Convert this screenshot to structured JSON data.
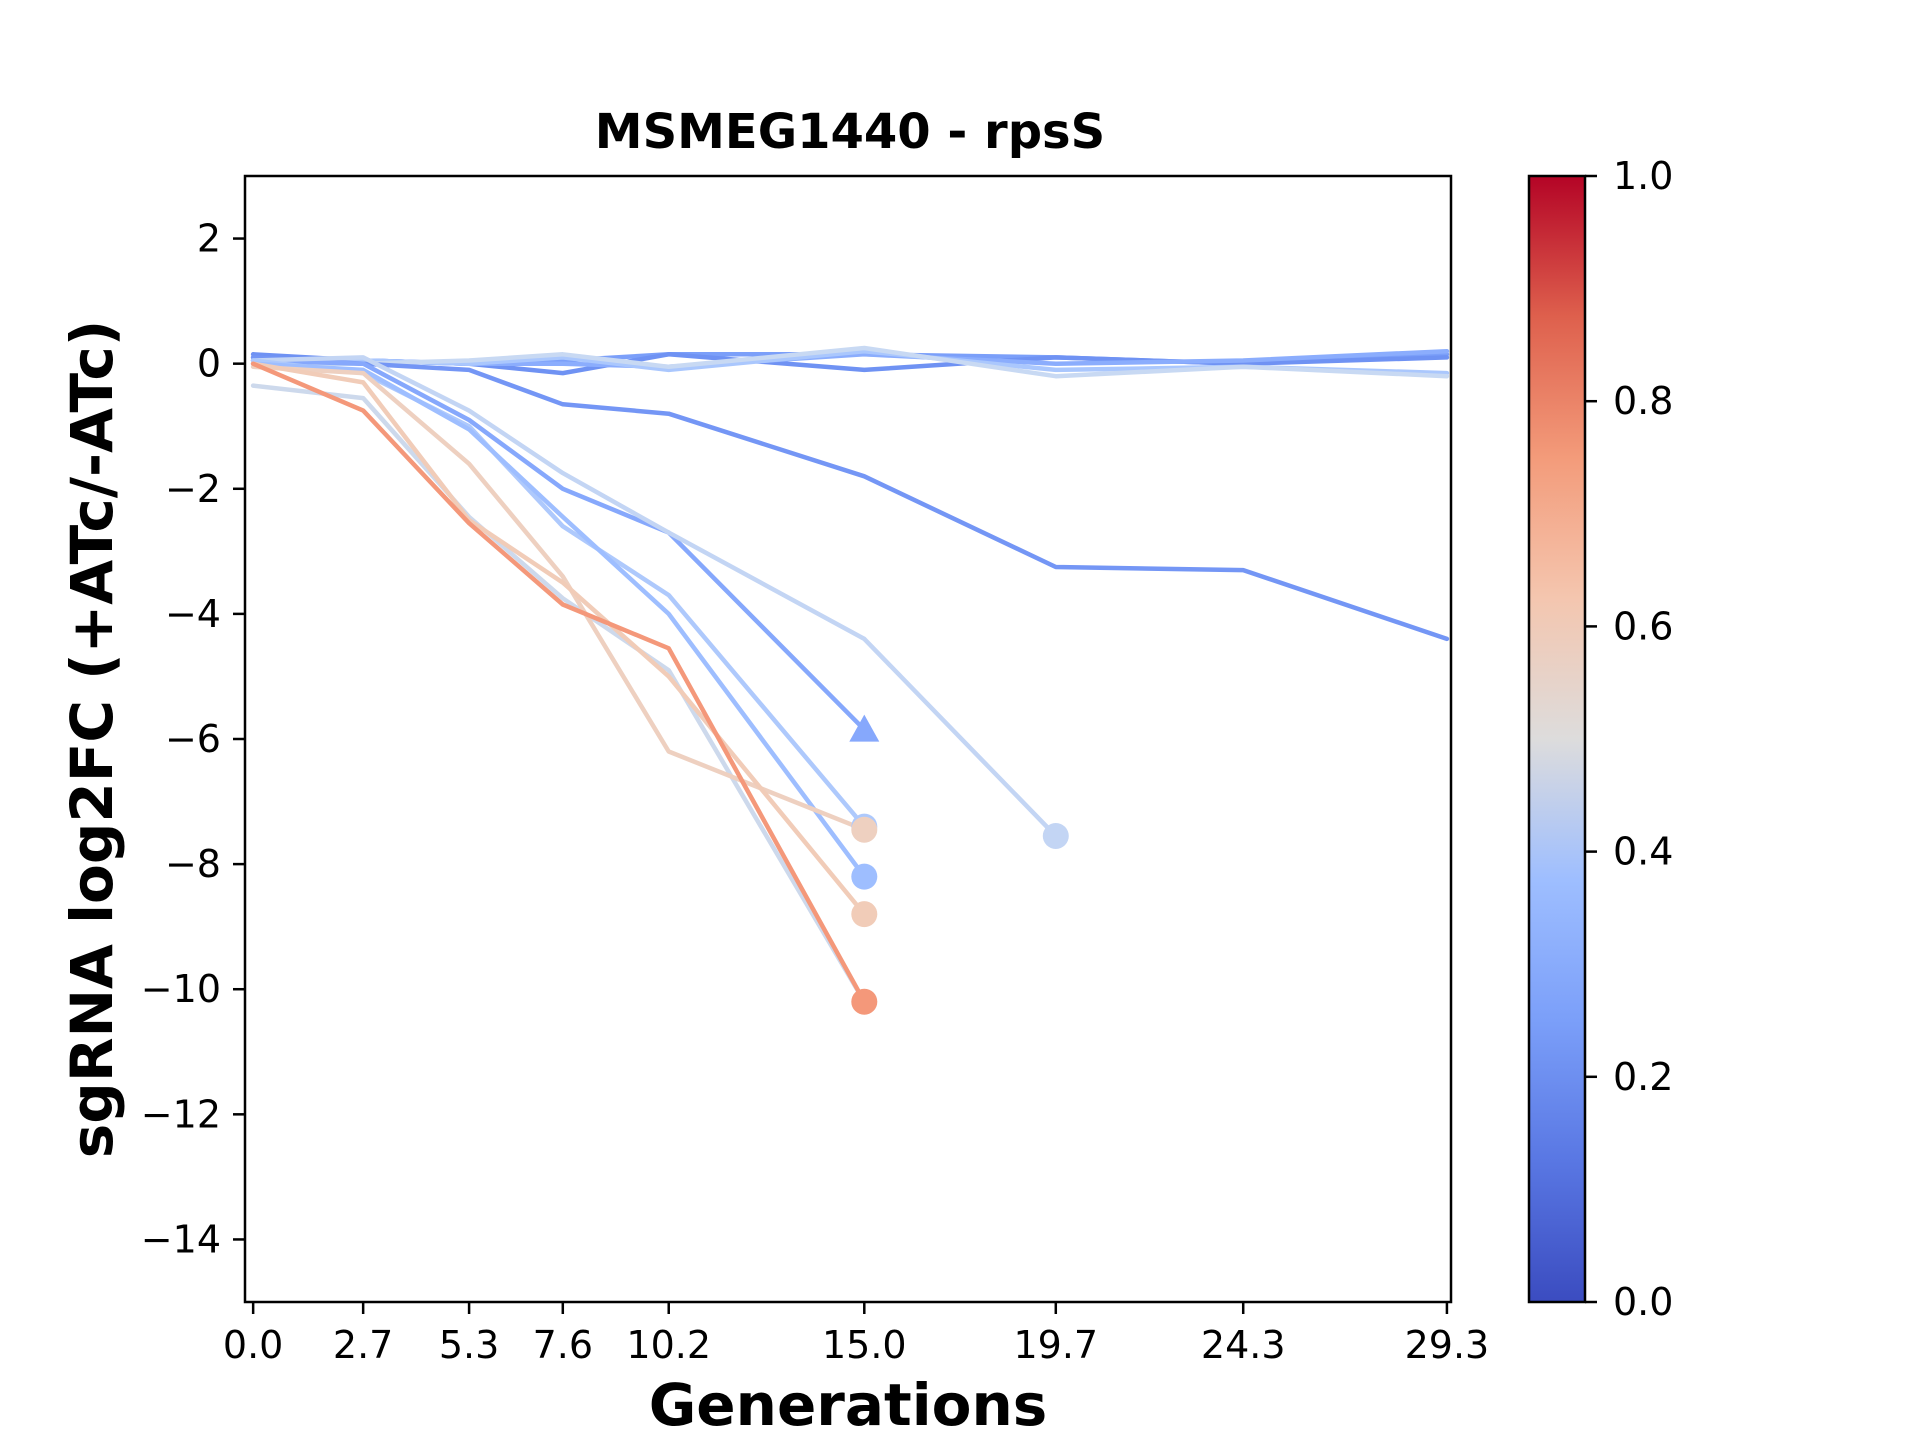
{
  "chart_data": {
    "type": "line",
    "title": "MSMEG1440 - rpsS",
    "xlabel": "Generations",
    "ylabel": "sgRNA log2FC (+ATc/-ATc)",
    "x_ticks": [
      "0.0",
      "2.7",
      "5.3",
      "7.6",
      "10.2",
      "15.0",
      "19.7",
      "24.3",
      "29.3"
    ],
    "x_tick_values": [
      0.0,
      2.7,
      5.3,
      7.6,
      10.2,
      15.0,
      19.7,
      24.3,
      29.3
    ],
    "y_ticks": [
      "2",
      "0",
      "−2",
      "−4",
      "−6",
      "−8",
      "−10",
      "−12",
      "−14"
    ],
    "y_tick_values": [
      2,
      0,
      -2,
      -4,
      -6,
      -8,
      -10,
      -12,
      -14
    ],
    "xlim": [
      -0.2,
      29.4
    ],
    "ylim": [
      -15,
      3
    ],
    "grid": false,
    "colorbar": {
      "colormap": "coolwarm",
      "range": [
        0.0,
        1.0
      ],
      "ticks": [
        "0.0",
        "0.2",
        "0.4",
        "0.6",
        "0.8",
        "1.0"
      ],
      "tick_values": [
        0.0,
        0.2,
        0.4,
        0.6,
        0.8,
        1.0
      ]
    },
    "series": [
      {
        "color": "#7b9ff9",
        "x": [
          0.0,
          2.7,
          5.3,
          7.6,
          10.2,
          15.0,
          19.7,
          24.3,
          29.3
        ],
        "y": [
          0.1,
          0.05,
          0.0,
          0.05,
          0.15,
          0.15,
          0.1,
          0.0,
          0.15
        ],
        "marker": "none",
        "end": "none"
      },
      {
        "color": "#6f92f3",
        "x": [
          0.0,
          2.7,
          5.3,
          7.6,
          10.2,
          15.0,
          19.7,
          24.3,
          29.3
        ],
        "y": [
          0.15,
          0.05,
          0.0,
          -0.15,
          0.15,
          -0.1,
          0.1,
          0.0,
          0.1
        ],
        "marker": "none",
        "end": "none"
      },
      {
        "color": "#8badfd",
        "x": [
          0.0,
          2.7,
          5.3,
          7.6,
          10.2,
          15.0,
          19.7,
          24.3,
          29.3
        ],
        "y": [
          0.05,
          0.05,
          0.0,
          0.0,
          -0.05,
          0.15,
          0.0,
          0.05,
          0.2
        ],
        "marker": "none",
        "end": "none"
      },
      {
        "color": "#aac7fd",
        "x": [
          0.0,
          2.7,
          5.3,
          7.6,
          10.2,
          15.0,
          19.7,
          24.3,
          29.3
        ],
        "y": [
          0.05,
          0.05,
          0.0,
          0.1,
          -0.1,
          0.2,
          -0.1,
          -0.05,
          -0.15
        ],
        "marker": "none",
        "end": "none"
      },
      {
        "color": "#c8d9f3",
        "x": [
          0.0,
          2.7,
          5.3,
          7.6,
          10.2,
          15.0,
          19.7,
          24.3,
          29.3
        ],
        "y": [
          0.0,
          0.0,
          0.05,
          0.15,
          -0.05,
          0.25,
          -0.2,
          -0.05,
          -0.2
        ],
        "marker": "none",
        "end": "none"
      },
      {
        "color": "#7496f5",
        "x": [
          0.0,
          2.7,
          5.3,
          7.6,
          10.2,
          15.0,
          19.7,
          24.3,
          29.3
        ],
        "y": [
          0.1,
          0.0,
          -0.1,
          -0.65,
          -0.8,
          -1.8,
          -3.25,
          -3.3,
          -4.4
        ],
        "marker": "none",
        "end": "none"
      },
      {
        "color": "#86a8fc",
        "x": [
          0.0,
          2.7,
          5.3,
          7.6,
          10.2,
          15.0
        ],
        "y": [
          0.05,
          0.0,
          -0.9,
          -2.0,
          -2.7,
          -5.85
        ],
        "marker": "triangle",
        "end": "triangle"
      },
      {
        "color": "#c3d5f4",
        "x": [
          0.0,
          2.7,
          5.3,
          7.6,
          10.2,
          15.0,
          19.7
        ],
        "y": [
          0.05,
          0.1,
          -0.75,
          -1.75,
          -2.7,
          -4.4,
          -7.55
        ],
        "marker": "circle",
        "end": "circle"
      },
      {
        "color": "#aec9fc",
        "x": [
          0.0,
          2.7,
          5.3,
          7.6,
          10.2,
          15.0
        ],
        "y": [
          0.05,
          -0.15,
          -1.0,
          -2.6,
          -3.7,
          -7.4
        ],
        "marker": "circle",
        "end": "circle"
      },
      {
        "color": "#9ebeff",
        "x": [
          0.0,
          2.7,
          5.3,
          7.6,
          10.2,
          15.0
        ],
        "y": [
          0.0,
          -0.1,
          -1.05,
          -2.45,
          -4.0,
          -8.2
        ],
        "marker": "circle",
        "end": "circle"
      },
      {
        "color": "#cdd9ec",
        "x": [
          0.0,
          2.7,
          5.3,
          7.6,
          10.2,
          15.0
        ],
        "y": [
          -0.35,
          -0.55,
          -2.45,
          -3.75,
          -4.9,
          -10.2
        ],
        "marker": "none",
        "end": "none"
      },
      {
        "color": "#eed0c0",
        "x": [
          0.0,
          2.7,
          5.3,
          7.6,
          10.2,
          15.0
        ],
        "y": [
          -0.05,
          -0.15,
          -1.6,
          -3.4,
          -6.2,
          -7.45
        ],
        "marker": "circle",
        "end": "circle"
      },
      {
        "color": "#f1ccb8",
        "x": [
          0.0,
          2.7,
          5.3,
          7.6,
          10.2,
          15.0
        ],
        "y": [
          0.0,
          -0.3,
          -2.5,
          -3.5,
          -5.0,
          -8.8
        ],
        "marker": "circle",
        "end": "circle"
      },
      {
        "color": "#f4987a",
        "x": [
          0.0,
          2.7,
          5.3,
          7.6,
          10.2,
          15.0
        ],
        "y": [
          0.0,
          -0.75,
          -2.55,
          -3.85,
          -4.55,
          -10.2
        ],
        "marker": "circle",
        "end": "circle"
      }
    ]
  }
}
